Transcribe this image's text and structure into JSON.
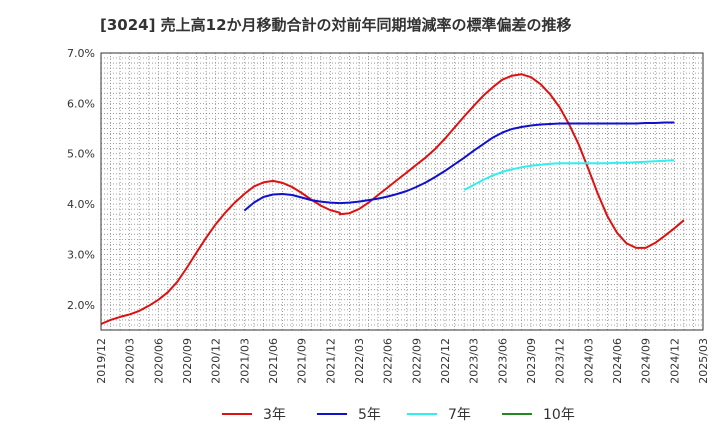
{
  "chart_data": {
    "type": "line",
    "title": "[3024]  売上高12か月移動合計の対前年同期増減率の標準偏差の推移",
    "xlabel": "",
    "ylabel": "",
    "x_ticks": [
      "2019/12",
      "2020/03",
      "2020/06",
      "2020/09",
      "2020/12",
      "2021/03",
      "2021/06",
      "2021/09",
      "2021/12",
      "2022/03",
      "2022/06",
      "2022/09",
      "2022/12",
      "2023/03",
      "2023/06",
      "2023/09",
      "2023/12",
      "2024/03",
      "2024/06",
      "2024/09",
      "2024/12",
      "2025/03"
    ],
    "y_ticks": [
      "2.0%",
      "3.0%",
      "4.0%",
      "5.0%",
      "6.0%",
      "7.0%"
    ],
    "ylim": [
      1.5,
      7.0
    ],
    "grid": true,
    "legend_position": "bottom",
    "series": [
      {
        "name": "3年",
        "color": "#dd1111",
        "values": [
          [
            "2019/12",
            1.62
          ],
          [
            "2020/01",
            1.7
          ],
          [
            "2020/02",
            1.76
          ],
          [
            "2020/03",
            1.81
          ],
          [
            "2020/04",
            1.88
          ],
          [
            "2020/05",
            1.98
          ],
          [
            "2020/06",
            2.1
          ],
          [
            "2020/07",
            2.25
          ],
          [
            "2020/08",
            2.46
          ],
          [
            "2020/09",
            2.74
          ],
          [
            "2020/10",
            3.04
          ],
          [
            "2020/11",
            3.33
          ],
          [
            "2020/12",
            3.6
          ],
          [
            "2021/01",
            3.83
          ],
          [
            "2021/02",
            4.03
          ],
          [
            "2021/03",
            4.2
          ],
          [
            "2021/04",
            4.35
          ],
          [
            "2021/05",
            4.43
          ],
          [
            "2021/06",
            4.46
          ],
          [
            "2021/07",
            4.42
          ],
          [
            "2021/08",
            4.34
          ],
          [
            "2021/09",
            4.22
          ],
          [
            "2021/10",
            4.09
          ],
          [
            "2021/11",
            3.97
          ],
          [
            "2021/12",
            3.88
          ],
          [
            "2021/13",
            3.83
          ],
          [
            "2022/01",
            3.8
          ],
          [
            "2022/02",
            3.82
          ],
          [
            "2022/03",
            3.9
          ],
          [
            "2022/04",
            4.03
          ],
          [
            "2022/05",
            4.18
          ],
          [
            "2022/06",
            4.33
          ],
          [
            "2022/07",
            4.48
          ],
          [
            "2022/08",
            4.63
          ],
          [
            "2022/09",
            4.78
          ],
          [
            "2022/10",
            4.93
          ],
          [
            "2022/11",
            5.1
          ],
          [
            "2022/12",
            5.3
          ],
          [
            "2023/01",
            5.52
          ],
          [
            "2023/02",
            5.74
          ],
          [
            "2023/03",
            5.95
          ],
          [
            "2023/04",
            6.15
          ],
          [
            "2023/05",
            6.32
          ],
          [
            "2023/06",
            6.47
          ],
          [
            "2023/07",
            6.55
          ],
          [
            "2023/08",
            6.58
          ],
          [
            "2023/09",
            6.52
          ],
          [
            "2023/10",
            6.38
          ],
          [
            "2023/11",
            6.18
          ],
          [
            "2023/12",
            5.92
          ],
          [
            "2024/01",
            5.58
          ],
          [
            "2024/02",
            5.18
          ],
          [
            "2024/03",
            4.7
          ],
          [
            "2024/04",
            4.2
          ],
          [
            "2024/05",
            3.76
          ],
          [
            "2024/06",
            3.43
          ],
          [
            "2024/07",
            3.22
          ],
          [
            "2024/08",
            3.13
          ],
          [
            "2024/09",
            3.13
          ],
          [
            "2024/10",
            3.23
          ],
          [
            "2024/11",
            3.37
          ],
          [
            "2024/12",
            3.52
          ],
          [
            "2024/13",
            3.68
          ]
        ]
      },
      {
        "name": "5年",
        "color": "#1111cc",
        "values": [
          [
            "2021/03",
            3.87
          ],
          [
            "2021/04",
            4.03
          ],
          [
            "2021/05",
            4.14
          ],
          [
            "2021/06",
            4.19
          ],
          [
            "2021/07",
            4.2
          ],
          [
            "2021/08",
            4.18
          ],
          [
            "2021/09",
            4.13
          ],
          [
            "2021/10",
            4.08
          ],
          [
            "2021/11",
            4.05
          ],
          [
            "2021/12",
            4.03
          ],
          [
            "2022/01",
            4.02
          ],
          [
            "2022/02",
            4.03
          ],
          [
            "2022/03",
            4.05
          ],
          [
            "2022/04",
            4.08
          ],
          [
            "2022/05",
            4.11
          ],
          [
            "2022/06",
            4.15
          ],
          [
            "2022/07",
            4.2
          ],
          [
            "2022/08",
            4.26
          ],
          [
            "2022/09",
            4.34
          ],
          [
            "2022/10",
            4.43
          ],
          [
            "2022/11",
            4.54
          ],
          [
            "2022/12",
            4.66
          ],
          [
            "2023/01",
            4.79
          ],
          [
            "2023/02",
            4.92
          ],
          [
            "2023/03",
            5.06
          ],
          [
            "2023/04",
            5.19
          ],
          [
            "2023/05",
            5.32
          ],
          [
            "2023/06",
            5.42
          ],
          [
            "2023/07",
            5.49
          ],
          [
            "2023/08",
            5.53
          ],
          [
            "2023/09",
            5.56
          ],
          [
            "2023/10",
            5.58
          ],
          [
            "2023/11",
            5.59
          ],
          [
            "2023/12",
            5.6
          ],
          [
            "2024/01",
            5.6
          ],
          [
            "2024/02",
            5.6
          ],
          [
            "2024/03",
            5.6
          ],
          [
            "2024/04",
            5.6
          ],
          [
            "2024/05",
            5.6
          ],
          [
            "2024/06",
            5.6
          ],
          [
            "2024/07",
            5.6
          ],
          [
            "2024/08",
            5.6
          ],
          [
            "2024/09",
            5.61
          ],
          [
            "2024/10",
            5.61
          ],
          [
            "2024/11",
            5.62
          ],
          [
            "2024/12",
            5.62
          ]
        ]
      },
      {
        "name": "7年",
        "color": "#33eeee",
        "values": [
          [
            "2023/02",
            4.28
          ],
          [
            "2023/03",
            4.38
          ],
          [
            "2023/04",
            4.48
          ],
          [
            "2023/05",
            4.57
          ],
          [
            "2023/06",
            4.64
          ],
          [
            "2023/07",
            4.69
          ],
          [
            "2023/08",
            4.73
          ],
          [
            "2023/09",
            4.76
          ],
          [
            "2023/10",
            4.78
          ],
          [
            "2023/11",
            4.8
          ],
          [
            "2023/12",
            4.81
          ],
          [
            "2024/01",
            4.81
          ],
          [
            "2024/02",
            4.81
          ],
          [
            "2024/03",
            4.81
          ],
          [
            "2024/04",
            4.81
          ],
          [
            "2024/05",
            4.81
          ],
          [
            "2024/06",
            4.82
          ],
          [
            "2024/07",
            4.82
          ],
          [
            "2024/08",
            4.83
          ],
          [
            "2024/09",
            4.84
          ],
          [
            "2024/10",
            4.85
          ],
          [
            "2024/11",
            4.86
          ],
          [
            "2024/12",
            4.87
          ]
        ]
      },
      {
        "name": "10年",
        "color": "#228822",
        "values": []
      }
    ]
  }
}
